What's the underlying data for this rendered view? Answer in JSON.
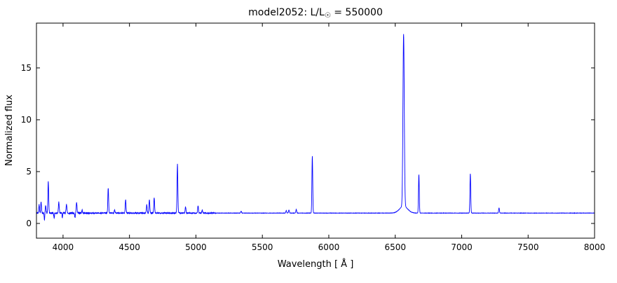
{
  "figure": {
    "title_parts": {
      "prefix": "model2052: L/L",
      "sub": "☉",
      "suffix": " = 550000"
    },
    "xlabel": "Wavelength [ Å ]",
    "ylabel": "Normalized flux"
  },
  "chart_data": {
    "type": "line",
    "title": "model2052: L/L☉ = 550000",
    "xlabel": "Wavelength [ Å ]",
    "ylabel": "Normalized flux",
    "xlim": [
      3800,
      8000
    ],
    "ylim": [
      -1.42,
      19.32
    ],
    "xticks": [
      4000,
      4500,
      5000,
      5500,
      6000,
      6500,
      7000,
      7500,
      8000
    ],
    "yticks": [
      0,
      5,
      10,
      15
    ],
    "line_color": "#0000ff",
    "background": "#ffffff",
    "continuum_level": 1.0,
    "emission_lines": [
      {
        "wavelength": 3820,
        "peak": 1.8
      },
      {
        "wavelength": 3835,
        "peak": 2.1
      },
      {
        "wavelength": 3869,
        "peak": 1.7
      },
      {
        "wavelength": 3889,
        "peak": 4.0
      },
      {
        "wavelength": 3968,
        "peak": 2.1
      },
      {
        "wavelength": 4026,
        "peak": 1.9
      },
      {
        "wavelength": 4102,
        "peak": 2.0
      },
      {
        "wavelength": 4144,
        "peak": 1.3
      },
      {
        "wavelength": 4340,
        "peak": 3.4
      },
      {
        "wavelength": 4388,
        "peak": 1.3
      },
      {
        "wavelength": 4471,
        "peak": 2.3
      },
      {
        "wavelength": 4630,
        "peak": 1.8
      },
      {
        "wavelength": 4650,
        "peak": 2.3
      },
      {
        "wavelength": 4686,
        "peak": 2.5
      },
      {
        "wavelength": 4861,
        "peak": 5.7
      },
      {
        "wavelength": 4922,
        "peak": 1.6
      },
      {
        "wavelength": 5016,
        "peak": 1.7
      },
      {
        "wavelength": 5048,
        "peak": 1.3
      },
      {
        "wavelength": 5340,
        "peak": 1.2
      },
      {
        "wavelength": 5680,
        "peak": 1.25
      },
      {
        "wavelength": 5700,
        "peak": 1.3
      },
      {
        "wavelength": 5755,
        "peak": 1.35
      },
      {
        "wavelength": 5876,
        "peak": 6.5
      },
      {
        "wavelength": 6563,
        "peak": 17.6,
        "sigma": 5
      },
      {
        "wavelength": 6678,
        "peak": 4.7
      },
      {
        "wavelength": 7065,
        "peak": 4.8
      },
      {
        "wavelength": 7281,
        "peak": 1.5
      }
    ],
    "absorption_lines": [
      {
        "wavelength": 3860,
        "min": 0.4
      },
      {
        "wavelength": 3933,
        "min": 0.55
      },
      {
        "wavelength": 3995,
        "min": 0.6
      },
      {
        "wavelength": 4090,
        "min": 0.55
      }
    ],
    "noise": {
      "blue_amplitude": 0.09,
      "mid_amplitude": 0.05,
      "red_amplitude": 0.015,
      "blue_limit": 4200,
      "mid_limit": 5150
    }
  }
}
